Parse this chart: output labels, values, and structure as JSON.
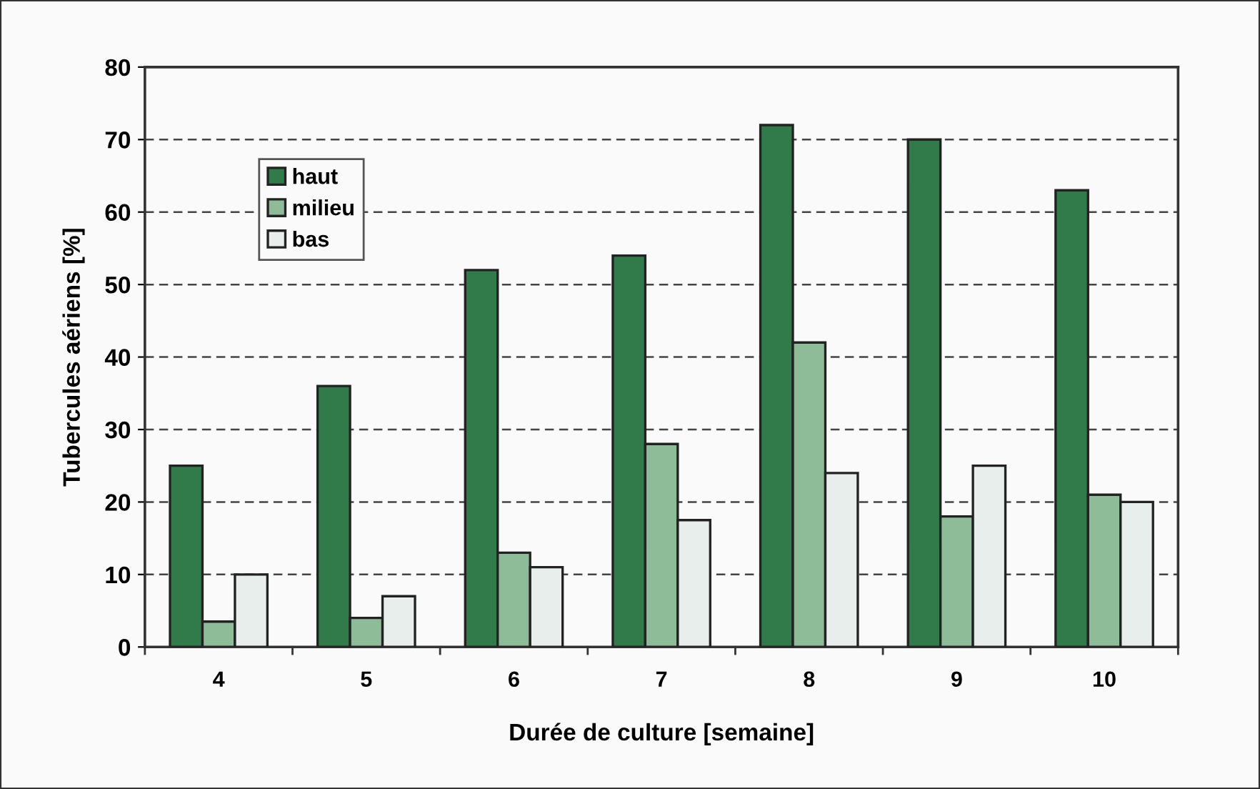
{
  "chart_data": {
    "type": "bar",
    "xlabel": "Durée de culture [semaine]",
    "ylabel": "Tubercules aériens [%]",
    "categories": [
      "4",
      "5",
      "6",
      "7",
      "8",
      "9",
      "10"
    ],
    "series": [
      {
        "name": "haut",
        "color": "#317a4a",
        "values": [
          25,
          36,
          52,
          54,
          72,
          70,
          63
        ]
      },
      {
        "name": "milieu",
        "color": "#8fbc98",
        "values": [
          3.5,
          4,
          13,
          28,
          42,
          18,
          21
        ]
      },
      {
        "name": "bas",
        "color": "#e8eeec",
        "values": [
          10,
          7,
          11,
          17.5,
          24,
          25,
          20
        ]
      }
    ],
    "ylim": [
      0,
      80
    ],
    "yticks": [
      0,
      10,
      20,
      30,
      40,
      50,
      60,
      70,
      80
    ],
    "grid": "y",
    "legend": "top left"
  }
}
